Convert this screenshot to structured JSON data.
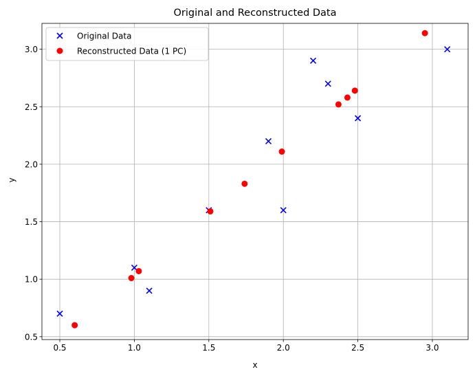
{
  "chart_data": {
    "type": "scatter",
    "title": "Original and Reconstructed Data",
    "xlabel": "x",
    "ylabel": "y",
    "xlim": [
      0.38,
      3.24
    ],
    "ylim": [
      0.475,
      3.225
    ],
    "xticks": [
      0.5,
      1.0,
      1.5,
      2.0,
      2.5,
      3.0
    ],
    "xtick_labels": [
      "0.5",
      "1.0",
      "1.5",
      "2.0",
      "2.5",
      "3.0"
    ],
    "yticks": [
      0.5,
      1.0,
      1.5,
      2.0,
      2.5,
      3.0
    ],
    "ytick_labels": [
      "0.5",
      "1.0",
      "1.5",
      "2.0",
      "2.5",
      "3.0"
    ],
    "grid": true,
    "legend_position": "top-left",
    "series": [
      {
        "name": "Original Data",
        "marker": "x",
        "color": "#0000ff",
        "points": [
          [
            2.5,
            2.4
          ],
          [
            0.5,
            0.7
          ],
          [
            2.2,
            2.9
          ],
          [
            1.9,
            2.2
          ],
          [
            3.1,
            3.0
          ],
          [
            2.3,
            2.7
          ],
          [
            2.0,
            1.6
          ],
          [
            1.0,
            1.1
          ],
          [
            1.5,
            1.6
          ],
          [
            1.1,
            0.9
          ]
        ]
      },
      {
        "name": "Reconstructed Data (1 PC)",
        "marker": "o",
        "color": "#ff0000",
        "points": [
          [
            2.48,
            2.64
          ],
          [
            0.6,
            0.6
          ],
          [
            2.43,
            2.58
          ],
          [
            1.99,
            2.11
          ],
          [
            2.95,
            3.14
          ],
          [
            2.37,
            2.52
          ],
          [
            1.74,
            1.83
          ],
          [
            1.03,
            1.07
          ],
          [
            1.51,
            1.59
          ],
          [
            0.98,
            1.01
          ]
        ]
      }
    ]
  }
}
